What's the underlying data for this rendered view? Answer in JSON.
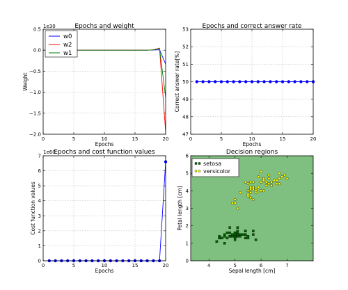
{
  "chart_data": [
    {
      "type": "line",
      "title": "Epochs and weight",
      "xlabel": "Epochs",
      "ylabel": "Weight",
      "offset_text": "1e30",
      "xlim": [
        0,
        20
      ],
      "ylim": [
        -2.0,
        0.5
      ],
      "xticks": [
        0,
        5,
        10,
        15,
        20
      ],
      "xtick_labels": [
        "0",
        "5",
        "10",
        "15",
        "20"
      ],
      "yticks": [
        0.5,
        0.0,
        -0.5,
        -1.0,
        -1.5,
        -2.0
      ],
      "ytick_labels": [
        "0.5",
        "0.0",
        "−0.5",
        "−1.0",
        "−1.5",
        "−2.0"
      ],
      "grid": true,
      "legend_position": "upper-left",
      "series": [
        {
          "name": "w0",
          "color": "#0000ff",
          "x": [
            0,
            1,
            2,
            3,
            4,
            5,
            6,
            7,
            8,
            9,
            10,
            11,
            12,
            13,
            14,
            15,
            16,
            17,
            18,
            19,
            20
          ],
          "y": [
            0,
            0,
            0,
            0,
            0,
            0,
            0,
            0,
            0,
            0,
            0,
            0,
            0,
            0,
            0,
            0,
            0,
            0,
            0.005,
            0.01,
            -0.33
          ]
        },
        {
          "name": "w2",
          "color": "#ff0000",
          "x": [
            0,
            1,
            2,
            3,
            4,
            5,
            6,
            7,
            8,
            9,
            10,
            11,
            12,
            13,
            14,
            15,
            16,
            17,
            18,
            19,
            20
          ],
          "y": [
            0,
            0,
            0,
            0,
            0,
            0,
            0,
            0,
            0,
            0,
            0,
            0,
            0,
            0,
            0,
            0,
            0,
            0,
            0.01,
            0.05,
            -1.95
          ]
        },
        {
          "name": "w1",
          "color": "#008000",
          "x": [
            0,
            1,
            2,
            3,
            4,
            5,
            6,
            7,
            8,
            9,
            10,
            11,
            12,
            13,
            14,
            15,
            16,
            17,
            18,
            19,
            20
          ],
          "y": [
            0,
            0,
            0,
            0,
            0,
            0,
            0,
            0,
            0,
            0,
            0,
            0,
            0,
            0,
            0,
            0,
            0,
            0,
            0.008,
            0.04,
            -1.12
          ]
        }
      ]
    },
    {
      "type": "line",
      "title": "Epochs and correct answer rate",
      "xlabel": "Epochs",
      "ylabel": "Correct answer rate[%]",
      "xlim": [
        0,
        20
      ],
      "ylim": [
        47,
        53
      ],
      "xticks": [
        0,
        5,
        10,
        15,
        20
      ],
      "xtick_labels": [
        "0",
        "5",
        "10",
        "15",
        "20"
      ],
      "yticks": [
        53,
        52,
        51,
        50,
        49,
        48,
        47
      ],
      "ytick_labels": [
        "53",
        "52",
        "51",
        "50",
        "49",
        "48",
        "47"
      ],
      "grid": true,
      "series": [
        {
          "color": "#0000ff",
          "marker": "circle",
          "x": [
            1,
            2,
            3,
            4,
            5,
            6,
            7,
            8,
            9,
            10,
            11,
            12,
            13,
            14,
            15,
            16,
            17,
            18,
            19,
            20
          ],
          "y": [
            50,
            50,
            50,
            50,
            50,
            50,
            50,
            50,
            50,
            50,
            50,
            50,
            50,
            50,
            50,
            50,
            50,
            50,
            50,
            50
          ]
        }
      ]
    },
    {
      "type": "line",
      "title": "Epochs and cost function values",
      "xlabel": "Epochs",
      "ylabel": "Cost function values",
      "offset_text": "1e60",
      "xlim": [
        0,
        20
      ],
      "ylim": [
        0,
        7
      ],
      "xticks": [
        0,
        5,
        10,
        15,
        20
      ],
      "xtick_labels": [
        "0",
        "5",
        "10",
        "15",
        "20"
      ],
      "yticks": [
        7,
        6,
        5,
        4,
        3,
        2,
        1,
        0
      ],
      "ytick_labels": [
        "7",
        "6",
        "5",
        "4",
        "3",
        "2",
        "1",
        "0"
      ],
      "grid": true,
      "series": [
        {
          "color": "#0000ff",
          "marker": "circle",
          "x": [
            1,
            2,
            3,
            4,
            5,
            6,
            7,
            8,
            9,
            10,
            11,
            12,
            13,
            14,
            15,
            16,
            17,
            18,
            19,
            20
          ],
          "y": [
            0,
            0,
            0,
            0,
            0,
            0,
            0,
            0,
            0,
            0,
            0,
            0,
            0,
            0,
            0,
            0,
            0,
            0,
            0,
            6.6
          ]
        }
      ]
    },
    {
      "type": "scatter",
      "title": "Decision regions",
      "xlabel": "Sepal length [cm]",
      "ylabel": "Petal length [cm]",
      "xlim": [
        3.3,
        8.0
      ],
      "ylim": [
        0,
        6
      ],
      "xticks": [
        4,
        5,
        6,
        7
      ],
      "xtick_labels": [
        "4",
        "5",
        "6",
        "7"
      ],
      "yticks": [
        6,
        5,
        4,
        3,
        2,
        1,
        0
      ],
      "ytick_labels": [
        "6",
        "5",
        "4",
        "3",
        "2",
        "1",
        "0"
      ],
      "grid": false,
      "background_color": "#7fbf7f",
      "legend_position": "upper-left",
      "series": [
        {
          "name": "setosa",
          "marker": "square",
          "color": "#006400",
          "points": [
            [
              5.1,
              1.4
            ],
            [
              4.9,
              1.4
            ],
            [
              4.7,
              1.3
            ],
            [
              4.6,
              1.5
            ],
            [
              5.0,
              1.4
            ],
            [
              5.4,
              1.7
            ],
            [
              4.6,
              1.4
            ],
            [
              5.0,
              1.5
            ],
            [
              4.4,
              1.4
            ],
            [
              4.9,
              1.5
            ],
            [
              5.4,
              1.5
            ],
            [
              4.8,
              1.6
            ],
            [
              4.8,
              1.4
            ],
            [
              4.3,
              1.1
            ],
            [
              5.8,
              1.2
            ],
            [
              5.7,
              1.5
            ],
            [
              5.4,
              1.3
            ],
            [
              5.1,
              1.4
            ],
            [
              5.7,
              1.7
            ],
            [
              5.1,
              1.5
            ],
            [
              5.4,
              1.7
            ],
            [
              5.1,
              1.5
            ],
            [
              4.6,
              1.0
            ],
            [
              5.1,
              1.7
            ],
            [
              4.8,
              1.9
            ],
            [
              5.0,
              1.6
            ],
            [
              5.0,
              1.6
            ],
            [
              5.2,
              1.5
            ],
            [
              5.2,
              1.4
            ],
            [
              4.7,
              1.6
            ],
            [
              4.8,
              1.6
            ],
            [
              5.4,
              1.5
            ],
            [
              5.2,
              1.5
            ],
            [
              5.5,
              1.4
            ],
            [
              4.9,
              1.5
            ],
            [
              5.0,
              1.2
            ],
            [
              5.5,
              1.3
            ],
            [
              4.9,
              1.4
            ],
            [
              4.4,
              1.3
            ],
            [
              5.1,
              1.5
            ],
            [
              5.0,
              1.3
            ],
            [
              4.5,
              1.3
            ],
            [
              4.4,
              1.3
            ],
            [
              5.0,
              1.6
            ],
            [
              5.1,
              1.9
            ],
            [
              4.8,
              1.4
            ],
            [
              5.1,
              1.6
            ],
            [
              4.6,
              1.4
            ],
            [
              5.3,
              1.5
            ],
            [
              5.0,
              1.4
            ]
          ]
        },
        {
          "name": "versicolor",
          "marker": "circle",
          "color": "#ffff00",
          "points": [
            [
              7.0,
              4.7
            ],
            [
              6.4,
              4.5
            ],
            [
              6.9,
              4.9
            ],
            [
              5.5,
              4.0
            ],
            [
              6.5,
              4.6
            ],
            [
              5.7,
              4.5
            ],
            [
              6.3,
              4.7
            ],
            [
              4.9,
              3.3
            ],
            [
              6.6,
              4.6
            ],
            [
              5.2,
              3.9
            ],
            [
              5.0,
              3.5
            ],
            [
              5.9,
              4.2
            ],
            [
              6.0,
              4.0
            ],
            [
              6.1,
              4.7
            ],
            [
              5.6,
              3.6
            ],
            [
              6.7,
              4.4
            ],
            [
              5.6,
              4.5
            ],
            [
              5.8,
              4.1
            ],
            [
              6.2,
              4.5
            ],
            [
              5.6,
              3.9
            ],
            [
              5.9,
              4.8
            ],
            [
              6.1,
              4.0
            ],
            [
              6.3,
              4.9
            ],
            [
              6.1,
              4.7
            ],
            [
              6.4,
              4.3
            ],
            [
              6.6,
              4.4
            ],
            [
              6.8,
              4.8
            ],
            [
              6.7,
              5.0
            ],
            [
              6.0,
              4.5
            ],
            [
              5.7,
              3.5
            ],
            [
              5.5,
              3.8
            ],
            [
              5.5,
              3.7
            ],
            [
              5.8,
              3.9
            ],
            [
              6.0,
              5.1
            ],
            [
              5.4,
              4.5
            ],
            [
              6.0,
              4.5
            ],
            [
              6.7,
              4.7
            ],
            [
              6.3,
              4.4
            ],
            [
              5.6,
              4.1
            ],
            [
              5.5,
              4.0
            ],
            [
              5.5,
              4.4
            ],
            [
              6.1,
              4.6
            ],
            [
              5.8,
              4.0
            ],
            [
              5.0,
              3.3
            ],
            [
              5.6,
              4.2
            ],
            [
              5.7,
              4.2
            ],
            [
              5.7,
              4.2
            ],
            [
              6.2,
              4.3
            ],
            [
              5.1,
              3.0
            ],
            [
              5.7,
              4.1
            ]
          ]
        }
      ]
    }
  ]
}
